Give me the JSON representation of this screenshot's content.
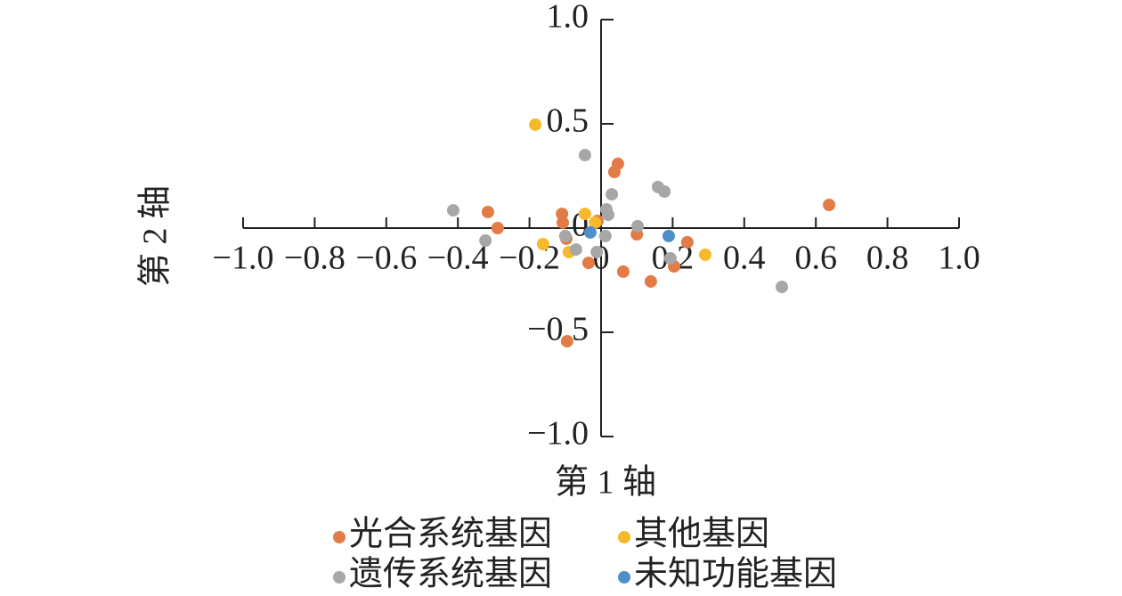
{
  "chart_data": {
    "type": "scatter",
    "x_label": "第 1 轴",
    "y_label": "第 2 轴",
    "xlim": [
      -1,
      1
    ],
    "ylim": [
      -1,
      1
    ],
    "xticks": [
      {
        "value": -1,
        "label": "−1.0"
      },
      {
        "value": -0.8,
        "label": "−0.8"
      },
      {
        "value": -0.6,
        "label": "−0.6"
      },
      {
        "value": -0.4,
        "label": "−0.4"
      },
      {
        "value": -0.2,
        "label": "−0.2"
      },
      0,
      0.2,
      0.4,
      0.6,
      0.8,
      {
        "value": 1,
        "label": "1.0"
      }
    ],
    "yticks": [
      {
        "value": 1,
        "label": "1.0"
      },
      0.5,
      0,
      {
        "value": -0.5,
        "label": "−0.5"
      },
      {
        "value": -1,
        "label": "−1.0"
      }
    ],
    "series": [
      {
        "name": "光合系统基因",
        "color": "#e27b45",
        "x": [
          -0.316,
          -0.289,
          -0.109,
          -0.107,
          -0.097,
          -0.095,
          -0.035,
          0.037,
          0.047,
          0.062,
          0.1,
          0.139,
          0.204,
          0.241,
          0.637,
          -0.01
        ],
        "values": [
          0.077,
          0,
          0.068,
          0.026,
          -0.051,
          -0.543,
          -0.167,
          0.269,
          0.308,
          -0.209,
          -0.03,
          -0.256,
          -0.184,
          -0.068,
          0.111,
          0.034
        ]
      },
      {
        "name": "其他基因",
        "color": "#f7b92c",
        "x": [
          -0.184,
          -0.045,
          -0.162,
          -0.09,
          0.291,
          -0.017
        ],
        "values": [
          0.496,
          0.068,
          -0.077,
          -0.115,
          -0.128,
          0.026
        ]
      },
      {
        "name": "遗传系统基因",
        "color": "#a7a7a7",
        "x": [
          -0.413,
          -0.323,
          -0.045,
          0.03,
          0.159,
          0.177,
          0.102,
          0.015,
          0.02,
          -0.1,
          -0.07,
          -0.012,
          0.012,
          0.194,
          0.505
        ],
        "values": [
          0.085,
          -0.06,
          0.35,
          0.162,
          0.197,
          0.175,
          0.009,
          0.09,
          0.064,
          -0.038,
          -0.103,
          -0.115,
          -0.038,
          -0.145,
          -0.282
        ]
      },
      {
        "name": "未知功能基因",
        "color": "#4f8fc9",
        "x": [
          -0.03,
          0.189
        ],
        "values": [
          -0.021,
          -0.038
        ]
      }
    ]
  }
}
